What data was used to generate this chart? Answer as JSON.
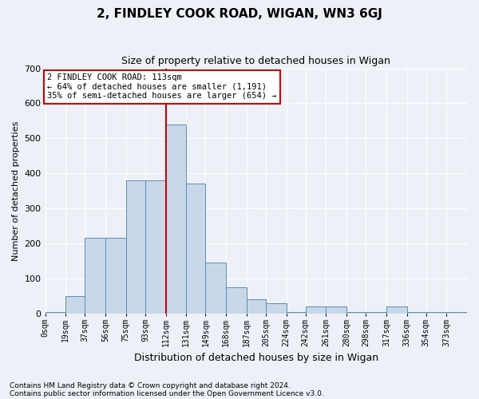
{
  "title": "2, FINDLEY COOK ROAD, WIGAN, WN3 6GJ",
  "subtitle": "Size of property relative to detached houses in Wigan",
  "xlabel": "Distribution of detached houses by size in Wigan",
  "ylabel": "Number of detached properties",
  "footnote1": "Contains HM Land Registry data © Crown copyright and database right 2024.",
  "footnote2": "Contains public sector information licensed under the Open Government Licence v3.0.",
  "annotation_line1": "2 FINDLEY COOK ROAD: 113sqm",
  "annotation_line2": "← 64% of detached houses are smaller (1,191)",
  "annotation_line3": "35% of semi-detached houses are larger (654) →",
  "bar_color": "#c8d8e8",
  "bar_edge_color": "#5b8db8",
  "ref_line_color": "#cc0000",
  "ref_line_x": 112,
  "bin_edges": [
    0,
    19,
    37,
    56,
    75,
    93,
    112,
    131,
    149,
    168,
    187,
    205,
    224,
    242,
    261,
    280,
    298,
    317,
    336,
    354,
    373,
    392
  ],
  "bin_labels": [
    "0sqm",
    "19sqm",
    "37sqm",
    "56sqm",
    "75sqm",
    "93sqm",
    "112sqm",
    "131sqm",
    "149sqm",
    "168sqm",
    "187sqm",
    "205sqm",
    "224sqm",
    "242sqm",
    "261sqm",
    "280sqm",
    "298sqm",
    "317sqm",
    "336sqm",
    "354sqm",
    "373sqm"
  ],
  "bar_heights": [
    5,
    50,
    215,
    215,
    380,
    380,
    540,
    370,
    145,
    75,
    40,
    30,
    5,
    20,
    20,
    5,
    5,
    20,
    5,
    5,
    5
  ],
  "ylim": [
    0,
    700
  ],
  "yticks": [
    0,
    100,
    200,
    300,
    400,
    500,
    600,
    700
  ],
  "bg_color": "#edf1f7",
  "plot_bg_color": "#edf1f7",
  "grid_color": "#ffffff"
}
